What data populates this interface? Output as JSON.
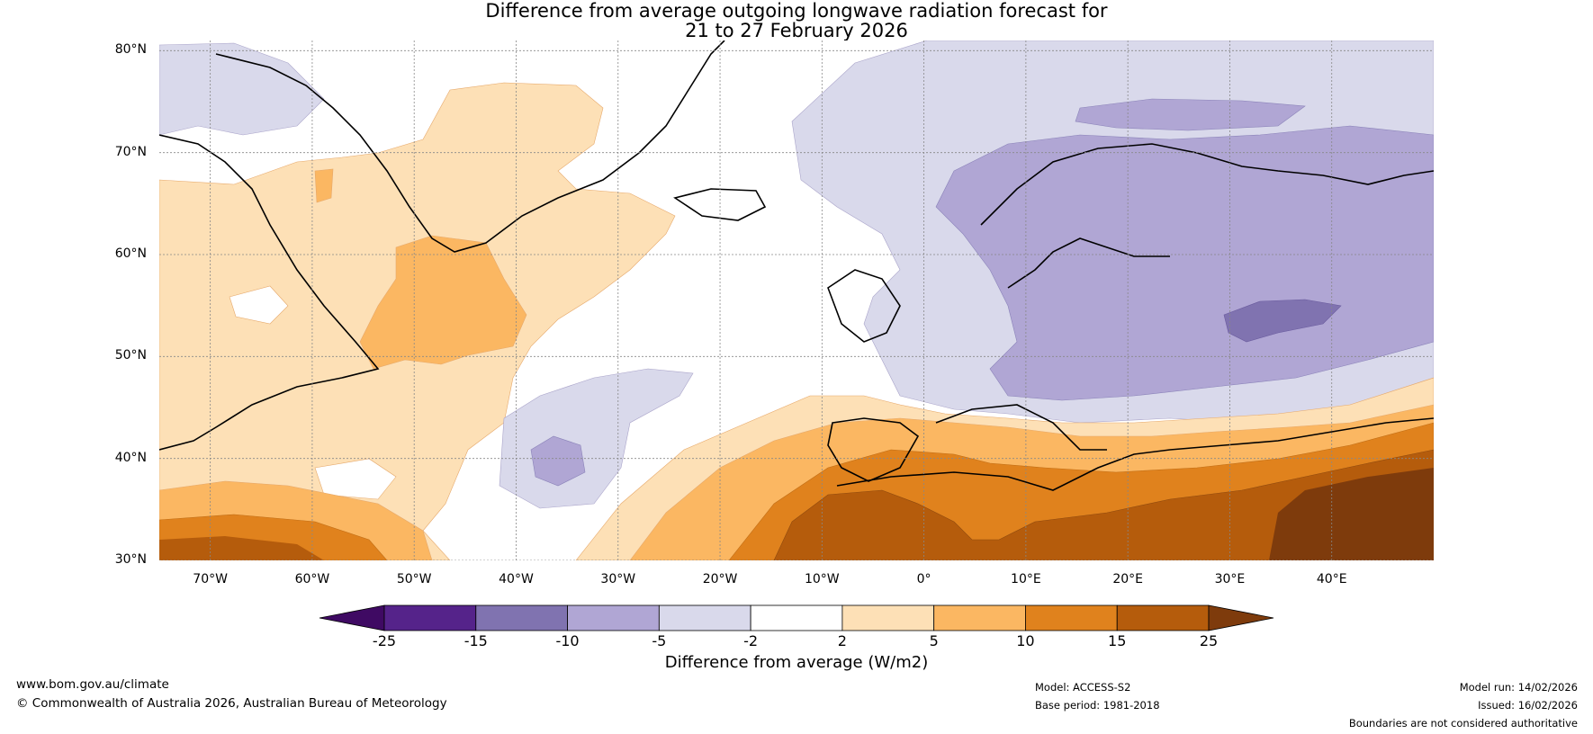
{
  "title": {
    "line1": "Difference from average outgoing longwave radiation forecast for",
    "line2": "21 to 27 February 2026"
  },
  "map": {
    "name": "OLR anomaly map, North Atlantic and Europe",
    "lon_range": [
      -75,
      50
    ],
    "lat_range": [
      30,
      81
    ],
    "lat_ticks": [
      "80°N",
      "70°N",
      "60°N",
      "50°N",
      "40°N",
      "30°N"
    ],
    "lat_tick_values": [
      80,
      70,
      60,
      50,
      40,
      30
    ],
    "lon_ticks": [
      "70°W",
      "60°W",
      "50°W",
      "40°W",
      "30°W",
      "20°W",
      "10°W",
      "0°",
      "10°E",
      "20°E",
      "30°E",
      "40°E"
    ],
    "lon_tick_values": [
      -70,
      -60,
      -50,
      -40,
      -30,
      -20,
      -10,
      0,
      10,
      20,
      30,
      40
    ]
  },
  "colorbar": {
    "ticks": [
      "-25",
      "-15",
      "-10",
      "-5",
      "-2",
      "2",
      "5",
      "10",
      "15",
      "25"
    ],
    "colors": [
      "#3f0a63",
      "#55238a",
      "#8073b0",
      "#b0a6d4",
      "#d9d9eb",
      "#ffffff",
      "#fde0b6",
      "#fbb762",
      "#e0821d",
      "#b55c0c",
      "#7e3b0c"
    ],
    "label": "Difference from average (W/m2)"
  },
  "footer": {
    "website": "www.bom.gov.au/climate",
    "copyright": "© Commonwealth of Australia 2026, Australian Bureau of Meteorology",
    "model": "Model: ACCESS-S2",
    "base_period": "Base period: 1981-2018",
    "model_run": "Model run: 14/02/2026",
    "issued": "Issued: 16/02/2026",
    "disclaimer": "Boundaries are not considered authoritative"
  }
}
